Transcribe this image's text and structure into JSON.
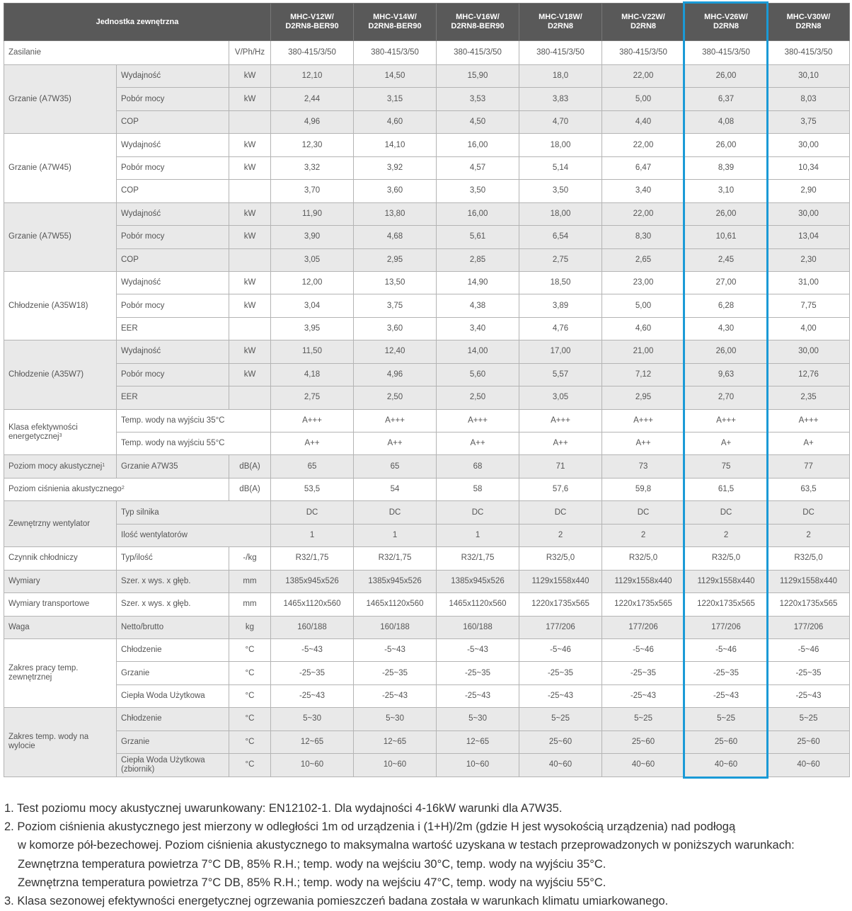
{
  "header": {
    "title": "Jednostka zewnętrzna",
    "models": [
      [
        "MHC-V12W/",
        "D2RN8-BER90"
      ],
      [
        "MHC-V14W/",
        "D2RN8-BER90"
      ],
      [
        "MHC-V16W/",
        "D2RN8-BER90"
      ],
      [
        "MHC-V18W/",
        "D2RN8"
      ],
      [
        "MHC-V22W/",
        "D2RN8"
      ],
      [
        "MHC-V26W/",
        "D2RN8"
      ],
      [
        "MHC-V30W/",
        "D2RN8"
      ]
    ]
  },
  "highlight_color": "#1a9ad6",
  "groups": [
    {
      "label": "Zasilanie",
      "mode": "group-wide",
      "rows": [
        {
          "unit": "V/Ph/Hz",
          "values": [
            "380-415/3/50",
            "380-415/3/50",
            "380-415/3/50",
            "380-415/3/50",
            "380-415/3/50",
            "380-415/3/50",
            "380-415/3/50"
          ]
        }
      ]
    },
    {
      "label": "Grzanie (A7W35)",
      "mode": "full",
      "rows": [
        {
          "sub": "Wydajność",
          "unit": "kW",
          "values": [
            "12,10",
            "14,50",
            "15,90",
            "18,0",
            "22,00",
            "26,00",
            "30,10"
          ]
        },
        {
          "sub": "Pobór mocy",
          "unit": "kW",
          "values": [
            "2,44",
            "3,15",
            "3,53",
            "3,83",
            "5,00",
            "6,37",
            "8,03"
          ]
        },
        {
          "sub": "COP",
          "unit": "",
          "values": [
            "4,96",
            "4,60",
            "4,50",
            "4,70",
            "4,40",
            "4,08",
            "3,75"
          ]
        }
      ]
    },
    {
      "label": "Grzanie (A7W45)",
      "mode": "full",
      "rows": [
        {
          "sub": "Wydajność",
          "unit": "kW",
          "values": [
            "12,30",
            "14,10",
            "16,00",
            "18,00",
            "22,00",
            "26,00",
            "30,00"
          ]
        },
        {
          "sub": "Pobór mocy",
          "unit": "kW",
          "values": [
            "3,32",
            "3,92",
            "4,57",
            "5,14",
            "6,47",
            "8,39",
            "10,34"
          ]
        },
        {
          "sub": "COP",
          "unit": "",
          "values": [
            "3,70",
            "3,60",
            "3,50",
            "3,50",
            "3,40",
            "3,10",
            "2,90"
          ]
        }
      ]
    },
    {
      "label": "Grzanie (A7W55)",
      "mode": "full",
      "rows": [
        {
          "sub": "Wydajność",
          "unit": "kW",
          "values": [
            "11,90",
            "13,80",
            "16,00",
            "18,00",
            "22,00",
            "26,00",
            "30,00"
          ]
        },
        {
          "sub": "Pobór mocy",
          "unit": "kW",
          "values": [
            "3,90",
            "4,68",
            "5,61",
            "6,54",
            "8,30",
            "10,61",
            "13,04"
          ]
        },
        {
          "sub": "COP",
          "unit": "",
          "values": [
            "3,05",
            "2,95",
            "2,85",
            "2,75",
            "2,65",
            "2,45",
            "2,30"
          ]
        }
      ]
    },
    {
      "label": "Chłodzenie (A35W18)",
      "mode": "full",
      "rows": [
        {
          "sub": "Wydajność",
          "unit": "kW",
          "values": [
            "12,00",
            "13,50",
            "14,90",
            "18,50",
            "23,00",
            "27,00",
            "31,00"
          ]
        },
        {
          "sub": "Pobór mocy",
          "unit": "kW",
          "values": [
            "3,04",
            "3,75",
            "4,38",
            "3,89",
            "5,00",
            "6,28",
            "7,75"
          ]
        },
        {
          "sub": "EER",
          "unit": "",
          "values": [
            "3,95",
            "3,60",
            "3,40",
            "4,76",
            "4,60",
            "4,30",
            "4,00"
          ]
        }
      ]
    },
    {
      "label": "Chłodzenie (A35W7)",
      "mode": "full",
      "rows": [
        {
          "sub": "Wydajność",
          "unit": "kW",
          "values": [
            "11,50",
            "12,40",
            "14,00",
            "17,00",
            "21,00",
            "26,00",
            "30,00"
          ]
        },
        {
          "sub": "Pobór mocy",
          "unit": "kW",
          "values": [
            "4,18",
            "4,96",
            "5,60",
            "5,57",
            "7,12",
            "9,63",
            "12,76"
          ]
        },
        {
          "sub": "EER",
          "unit": "",
          "values": [
            "2,75",
            "2,50",
            "2,50",
            "3,05",
            "2,95",
            "2,70",
            "2,35"
          ]
        }
      ]
    },
    {
      "label": "Klasa efektywności energetycznej",
      "sup": "3",
      "mode": "sub-wide",
      "rows": [
        {
          "sub": "Temp. wody na wyjściu 35°C",
          "values": [
            "A+++",
            "A+++",
            "A+++",
            "A+++",
            "A+++",
            "A+++",
            "A+++"
          ]
        },
        {
          "sub": "Temp. wody na wyjściu 55°C",
          "values": [
            "A++",
            "A++",
            "A++",
            "A++",
            "A++",
            "A+",
            "A+"
          ]
        }
      ]
    },
    {
      "label": "Poziom mocy akustycznej",
      "sup": "1",
      "mode": "full",
      "rows": [
        {
          "sub": "Grzanie A7W35",
          "unit": "dB(A)",
          "values": [
            "65",
            "65",
            "68",
            "71",
            "73",
            "75",
            "77"
          ]
        }
      ]
    },
    {
      "label": "Poziom ciśnienia akustycznego",
      "sup": "2",
      "mode": "group-wide",
      "rows": [
        {
          "unit": "dB(A)",
          "values": [
            "53,5",
            "54",
            "58",
            "57,6",
            "59,8",
            "61,5",
            "63,5"
          ]
        }
      ]
    },
    {
      "label": "Zewnętrzny wentylator",
      "mode": "sub-wide",
      "rows": [
        {
          "sub": "Typ silnika",
          "values": [
            "DC",
            "DC",
            "DC",
            "DC",
            "DC",
            "DC",
            "DC"
          ]
        },
        {
          "sub": "Ilość wentylatorów",
          "values": [
            "1",
            "1",
            "1",
            "2",
            "2",
            "2",
            "2"
          ]
        }
      ]
    },
    {
      "label": "Czynnik chłodniczy",
      "mode": "full",
      "rows": [
        {
          "sub": "Typ/ilość",
          "unit": "-/kg",
          "values": [
            "R32/1,75",
            "R32/1,75",
            "R32/1,75",
            "R32/5,0",
            "R32/5,0",
            "R32/5,0",
            "R32/5,0"
          ]
        }
      ]
    },
    {
      "label": "Wymiary",
      "mode": "full",
      "rows": [
        {
          "sub": "Szer. x wys. x głęb.",
          "unit": "mm",
          "values": [
            "1385x945x526",
            "1385x945x526",
            "1385x945x526",
            "1129x1558x440",
            "1129x1558x440",
            "1129x1558x440",
            "1129x1558x440"
          ]
        }
      ]
    },
    {
      "label": "Wymiary transportowe",
      "mode": "full",
      "rows": [
        {
          "sub": "Szer. x wys. x głęb.",
          "unit": "mm",
          "values": [
            "1465x1120x560",
            "1465x1120x560",
            "1465x1120x560",
            "1220x1735x565",
            "1220x1735x565",
            "1220x1735x565",
            "1220x1735x565"
          ]
        }
      ]
    },
    {
      "label": "Waga",
      "mode": "full",
      "rows": [
        {
          "sub": "Netto/brutto",
          "unit": "kg",
          "values": [
            "160/188",
            "160/188",
            "160/188",
            "177/206",
            "177/206",
            "177/206",
            "177/206"
          ]
        }
      ]
    },
    {
      "label": "Zakres pracy temp. zewnętrznej",
      "mode": "full",
      "rows": [
        {
          "sub": "Chłodzenie",
          "unit": "°C",
          "values": [
            "-5~43",
            "-5~43",
            "-5~43",
            "-5~46",
            "-5~46",
            "-5~46",
            "-5~46"
          ]
        },
        {
          "sub": "Grzanie",
          "unit": "°C",
          "values": [
            "-25~35",
            "-25~35",
            "-25~35",
            "-25~35",
            "-25~35",
            "-25~35",
            "-25~35"
          ]
        },
        {
          "sub": "Ciepła Woda Użytkowa",
          "unit": "°C",
          "values": [
            "-25~43",
            "-25~43",
            "-25~43",
            "-25~43",
            "-25~43",
            "-25~43",
            "-25~43"
          ]
        }
      ]
    },
    {
      "label": "Zakres temp. wody na wylocie",
      "mode": "full",
      "rows": [
        {
          "sub": "Chłodzenie",
          "unit": "°C",
          "values": [
            "5~30",
            "5~30",
            "5~30",
            "5~25",
            "5~25",
            "5~25",
            "5~25"
          ]
        },
        {
          "sub": "Grzanie",
          "unit": "°C",
          "values": [
            "12~65",
            "12~65",
            "12~65",
            "25~60",
            "25~60",
            "25~60",
            "25~60"
          ]
        },
        {
          "sub": "Ciepła Woda Użytkowa (zbiornik)",
          "unit": "°C",
          "values": [
            "10~60",
            "10~60",
            "10~60",
            "40~60",
            "40~60",
            "40~60",
            "40~60"
          ]
        }
      ]
    }
  ],
  "footnotes": [
    {
      "text": "1. Test poziomu mocy akustycznej uwarunkowany: EN12102-1. Dla wydajności 4-16kW warunki dla A7W35.",
      "indent": false
    },
    {
      "text": "2. Poziom ciśnienia akustycznego jest mierzony w odległości 1m od urządzenia i (1+H)/2m (gdzie H jest wysokością urządzenia) nad podłogą",
      "indent": false
    },
    {
      "text": "w komorze pół-bezechowej. Poziom ciśnienia akustycznego to maksymalna wartość uzyskana w testach przeprowadzonych w poniższych warunkach:",
      "indent": true
    },
    {
      "text": "Zewnętrzna temperatura powietrza 7°C DB, 85% R.H.; temp. wody na wejściu 30°C, temp. wody na wyjściu 35°C.",
      "indent": true
    },
    {
      "text": "Zewnętrzna temperatura powietrza 7°C DB, 85% R.H.; temp. wody na wejściu 47°C, temp. wody na wyjściu 55°C.",
      "indent": true
    },
    {
      "text": "3. Klasa sezonowej efektywności energetycznej ogrzewania pomieszczeń badana została w warunkach klimatu umiarkowanego.",
      "indent": false
    }
  ]
}
